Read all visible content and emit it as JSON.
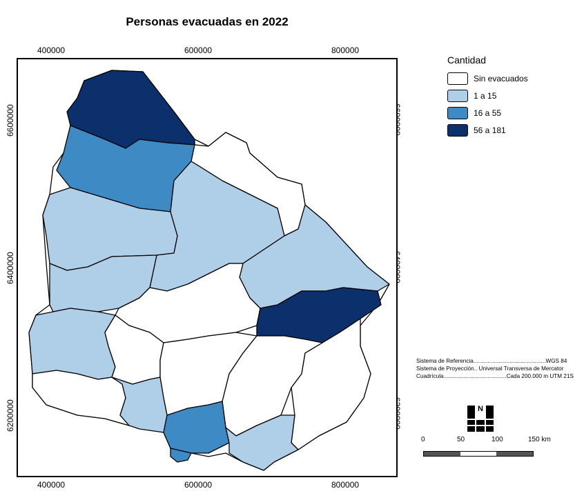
{
  "map": {
    "title": "Personas evacuadas en 2022",
    "x_ticks": [
      "400000",
      "600000",
      "800000"
    ],
    "y_ticks": [
      "6600000",
      "6400000",
      "6200000"
    ]
  },
  "legend": {
    "title": "Cantidad",
    "items": [
      {
        "label": "Sin evacuados",
        "color": "#ffffff"
      },
      {
        "label": "1 a 15",
        "color": "#aecfe7"
      },
      {
        "label": "16 a 55",
        "color": "#3e8ac4"
      },
      {
        "label": "56 a 181",
        "color": "#0b306b"
      }
    ]
  },
  "references": {
    "line1": "Sistema de Referencia..............................................WGS 84",
    "line2": "Sistema de Proyección.. Universal Transversa de Mercator",
    "line3": "Cuadrícula........................................Cada 200.000 m UTM 21S"
  },
  "scale": {
    "labels": [
      "0",
      "50",
      "100",
      "150 km"
    ],
    "colors": [
      "#555555",
      "#ffffff",
      "#555555"
    ]
  },
  "north_label": "N"
}
